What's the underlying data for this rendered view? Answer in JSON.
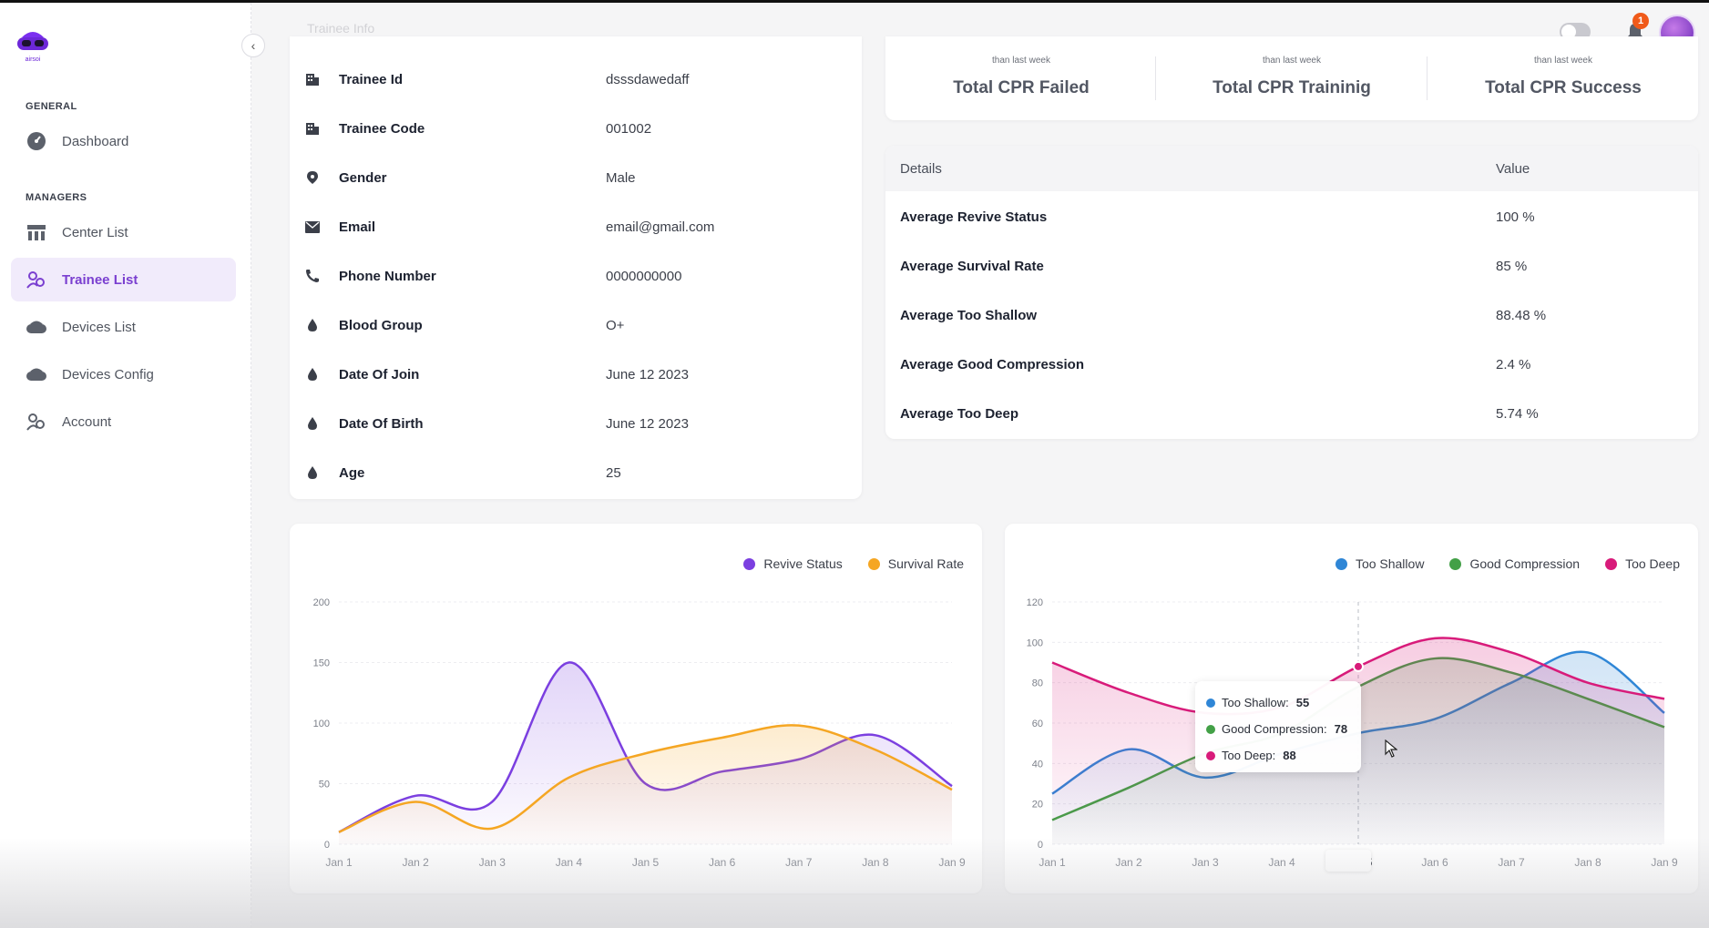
{
  "brand": {
    "name": "airsoi"
  },
  "header": {
    "faded_label": "Trainee Info"
  },
  "notifications": {
    "count": "1"
  },
  "sidebar": {
    "sections": [
      {
        "title": "GENERAL",
        "items": [
          {
            "label": "Dashboard",
            "icon": "dashboard-icon"
          }
        ]
      },
      {
        "title": "MANAGERS",
        "items": [
          {
            "label": "Center List",
            "icon": "center-icon"
          },
          {
            "label": "Trainee List",
            "icon": "trainee-icon",
            "active": true
          },
          {
            "label": "Devices List",
            "icon": "vr-headset-icon"
          },
          {
            "label": "Devices Config",
            "icon": "vr-headset-icon"
          },
          {
            "label": "Account",
            "icon": "account-icon"
          }
        ]
      }
    ]
  },
  "trainee": {
    "rows": [
      {
        "label": "Trainee Id",
        "value": "dsssdawedaff",
        "icon": "building-icon"
      },
      {
        "label": "Trainee Code",
        "value": "001002",
        "icon": "building-icon"
      },
      {
        "label": "Gender",
        "value": "Male",
        "icon": "location-pin-icon"
      },
      {
        "label": "Email",
        "value": "email@gmail.com",
        "icon": "mail-icon"
      },
      {
        "label": "Phone Number",
        "value": "0000000000",
        "icon": "phone-icon"
      },
      {
        "label": "Blood Group",
        "value": "O+",
        "icon": "drop-icon"
      },
      {
        "label": "Date Of Join",
        "value": "June 12 2023",
        "icon": "drop-icon"
      },
      {
        "label": "Date Of Birth",
        "value": "June 12 2023",
        "icon": "drop-icon"
      },
      {
        "label": "Age",
        "value": "25",
        "icon": "drop-icon"
      }
    ]
  },
  "stats": [
    {
      "sub": "than last week",
      "title": "Total CPR Failed"
    },
    {
      "sub": "than last week",
      "title": "Total CPR Traininig"
    },
    {
      "sub": "than last week",
      "title": "Total CPR Success"
    }
  ],
  "details": {
    "headers": {
      "key": "Details",
      "value": "Value"
    },
    "rows": [
      {
        "key": "Average Revive Status",
        "value": "100 %"
      },
      {
        "key": "Average Survival Rate",
        "value": "85 %"
      },
      {
        "key": "Average Too Shallow",
        "value": "88.48 %"
      },
      {
        "key": "Average Good Compression",
        "value": "2.4 %"
      },
      {
        "key": "Average Too Deep",
        "value": "5.74 %"
      }
    ]
  },
  "tooltip": {
    "rows": [
      {
        "label": "Too Shallow:",
        "value": "55",
        "color": "#2f86d6"
      },
      {
        "label": "Good Compression:",
        "value": "78",
        "color": "#43a047"
      },
      {
        "label": "Too Deep:",
        "value": "88",
        "color": "#d81b7a"
      }
    ]
  },
  "chart_data": [
    {
      "type": "area",
      "categories": [
        "Jan 1",
        "Jan 2",
        "Jan 3",
        "Jan 4",
        "Jan 5",
        "Jan 6",
        "Jan 7",
        "Jan 8",
        "Jan 9"
      ],
      "ylim": [
        0,
        200
      ],
      "yticks": [
        0,
        50,
        100,
        150,
        200
      ],
      "grid": true,
      "legend": "top-right",
      "series": [
        {
          "name": "Revive Status",
          "color": "#7b3fe0",
          "values": [
            10,
            40,
            35,
            150,
            50,
            60,
            70,
            90,
            48
          ]
        },
        {
          "name": "Survival Rate",
          "color": "#f5a623",
          "values": [
            10,
            35,
            13,
            55,
            75,
            88,
            98,
            78,
            45
          ]
        }
      ]
    },
    {
      "type": "area",
      "categories": [
        "Jan 1",
        "Jan 2",
        "Jan 3",
        "Jan 4",
        "Jan 5",
        "Jan 6",
        "Jan 7",
        "Jan 8",
        "Jan 9"
      ],
      "ylim": [
        0,
        120
      ],
      "yticks": [
        0,
        20,
        40,
        60,
        80,
        100,
        120
      ],
      "grid": true,
      "legend": "top-right",
      "highlight_category": "Jan 5",
      "series": [
        {
          "name": "Too Shallow",
          "color": "#2f86d6",
          "values": [
            25,
            47,
            33,
            45,
            55,
            62,
            80,
            95,
            65
          ]
        },
        {
          "name": "Good Compression",
          "color": "#43a047",
          "values": [
            12,
            28,
            45,
            55,
            78,
            92,
            85,
            72,
            58
          ]
        },
        {
          "name": "Too Deep",
          "color": "#d81b7a",
          "values": [
            90,
            75,
            65,
            68,
            88,
            102,
            95,
            80,
            72
          ]
        }
      ]
    }
  ]
}
